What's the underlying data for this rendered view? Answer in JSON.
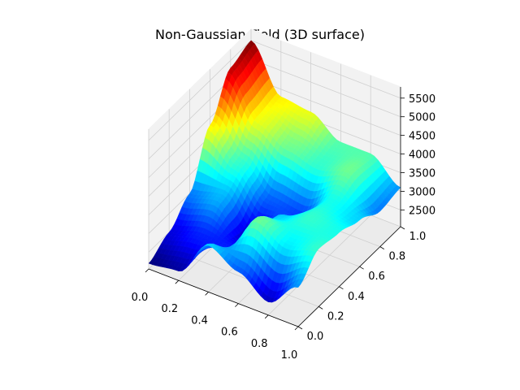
{
  "chart_data": {
    "type": "surface3d",
    "title": "Non-Gaussian Field (3D surface)",
    "xlabel": "",
    "ylabel": "",
    "zlabel": "",
    "colormap": "jet",
    "xlim": [
      0,
      1
    ],
    "ylim": [
      0,
      1
    ],
    "zlim": [
      2050,
      5800
    ],
    "x_ticks": [
      "0.0",
      "0.2",
      "0.4",
      "0.6",
      "0.8",
      "1.0"
    ],
    "y_ticks": [
      "0.0",
      "0.2",
      "0.4",
      "0.6",
      "0.8",
      "1.0"
    ],
    "z_ticks": [
      "2500",
      "3000",
      "3500",
      "4000",
      "4500",
      "5000",
      "5500"
    ],
    "grid": true,
    "x": [
      0,
      0.2,
      0.4,
      0.6,
      0.8,
      1.0
    ],
    "y": [
      0,
      0.2,
      0.4,
      0.6,
      0.8,
      1.0
    ],
    "z": [
      [
        2200,
        2500,
        3000,
        4300,
        5300,
        5500
      ],
      [
        2300,
        2700,
        3200,
        3600,
        4200,
        4300
      ],
      [
        3300,
        2700,
        2400,
        2900,
        3800,
        4200
      ],
      [
        2900,
        3800,
        3300,
        2800,
        3600,
        3700
      ],
      [
        2400,
        3400,
        3600,
        3500,
        3800,
        3700
      ],
      [
        3100,
        3600,
        3500,
        3300,
        3000,
        3100
      ]
    ]
  }
}
